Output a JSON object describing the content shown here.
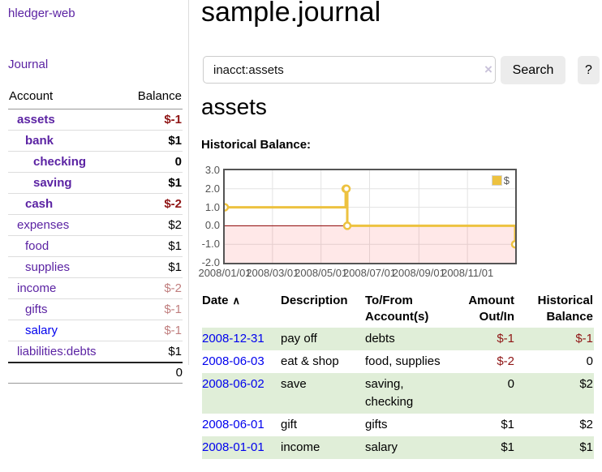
{
  "sidebar": {
    "brand": "hledger-web",
    "journal_link": "Journal",
    "accounts": {
      "headers": {
        "account": "Account",
        "balance": "Balance"
      },
      "rows": [
        {
          "name": "assets",
          "balance": "$-1"
        },
        {
          "name": "bank",
          "balance": "$1"
        },
        {
          "name": "checking",
          "balance": "0"
        },
        {
          "name": "saving",
          "balance": "$1"
        },
        {
          "name": "cash",
          "balance": "$-2"
        },
        {
          "name": "expenses",
          "balance": "$2"
        },
        {
          "name": "food",
          "balance": "$1"
        },
        {
          "name": "supplies",
          "balance": "$1"
        },
        {
          "name": "income",
          "balance": "$-2"
        },
        {
          "name": "gifts",
          "balance": "$-1"
        },
        {
          "name": "salary",
          "balance": "$-1"
        },
        {
          "name": "liabilities:debts",
          "balance": "$1"
        }
      ],
      "total": "0"
    }
  },
  "main": {
    "title": "sample.journal",
    "search": {
      "query": "inacct:assets",
      "clear_label": "×",
      "button_label": "Search",
      "help_label": "?"
    },
    "account_heading": "assets",
    "chart_heading": "Historical Balance:"
  },
  "chart_data": {
    "type": "line",
    "line_style": "step",
    "title": "Historical Balance",
    "grid": true,
    "legend_position": "top-right",
    "legend": [
      {
        "label": "$",
        "color": "#edc240"
      }
    ],
    "xmin": "2008-01-01",
    "xmax": "2008-12-31",
    "ylim": [
      -2,
      3
    ],
    "yticks": [
      {
        "label": "3.0",
        "value": 3
      },
      {
        "label": "2.0",
        "value": 2
      },
      {
        "label": "1.0",
        "value": 1
      },
      {
        "label": "0.0",
        "value": 0
      },
      {
        "label": "-1.0",
        "value": -1
      },
      {
        "label": "-2.0",
        "value": -2
      }
    ],
    "xticks": [
      {
        "label": "2008/01/01",
        "date": "2008-01-01"
      },
      {
        "label": "2008/03/01",
        "date": "2008-03-01"
      },
      {
        "label": "2008/05/01",
        "date": "2008-05-01"
      },
      {
        "label": "2008/07/01",
        "date": "2008-07-01"
      },
      {
        "label": "2008/09/01",
        "date": "2008-09-01"
      },
      {
        "label": "2008/11/01",
        "date": "2008-11-01"
      }
    ],
    "series": [
      {
        "name": "$",
        "color": "#edc240",
        "marker": "circle",
        "points": [
          [
            "2008-01-01",
            1
          ],
          [
            "2008-06-01",
            2
          ],
          [
            "2008-06-02",
            2
          ],
          [
            "2008-06-03",
            0
          ],
          [
            "2008-12-31",
            -1
          ]
        ]
      }
    ],
    "negative_region_fill": "rgba(255,0,0,0.09)",
    "zero_line_color": "#8b0000"
  },
  "register": {
    "headers": [
      "Date",
      "Description",
      "To/From Account(s)",
      "Amount Out/In",
      "Historical Balance"
    ],
    "sort_indicator": "∧",
    "rows": [
      {
        "date": "2008-12-31",
        "description": "pay off",
        "accounts": "debts",
        "amount": "$-1",
        "balance": "$-1"
      },
      {
        "date": "2008-06-03",
        "description": "eat & shop",
        "accounts": "food, supplies",
        "amount": "$-2",
        "balance": "0"
      },
      {
        "date": "2008-06-02",
        "description": "save",
        "accounts": "saving, checking",
        "amount": "0",
        "balance": "$2"
      },
      {
        "date": "2008-06-01",
        "description": "gift",
        "accounts": "gifts",
        "amount": "$1",
        "balance": "$2"
      },
      {
        "date": "2008-01-01",
        "description": "income",
        "accounts": "salary",
        "amount": "$1",
        "balance": "$1"
      }
    ]
  },
  "ui_colors": {
    "link_purple": "#5b23a3",
    "link_blue": "#0000ee",
    "negative_dark": "#8f1515",
    "negative_muted": "#c07e7e",
    "row_stripe_green": "#e0eed8",
    "button_gray": "#ececec",
    "chart_line_gold": "#edc240"
  }
}
